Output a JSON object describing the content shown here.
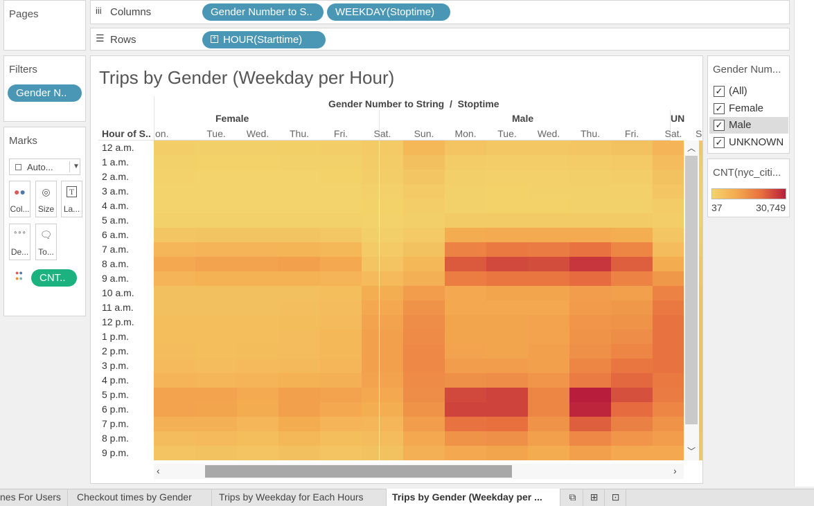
{
  "shelves": {
    "pages_title": "Pages",
    "columns_label": "Columns",
    "rows_label": "Rows",
    "columns_pills": [
      "Gender Number to S..",
      "WEEKDAY(Stoptime)"
    ],
    "rows_pills": [
      "HOUR(Starttime)"
    ]
  },
  "filters": {
    "title": "Filters",
    "pill": "Gender N.."
  },
  "marks": {
    "title": "Marks",
    "type": "Auto...",
    "buttons": [
      "Col...",
      "Size",
      "La...",
      "De...",
      "To..."
    ],
    "cnt_pill": "CNT.."
  },
  "chart": {
    "title": "Trips by Gender (Weekday per Hour)",
    "header": "Gender Number to String  /  Stoptime",
    "row_axis_title": "Hour of S..",
    "groups": [
      "Female",
      "Male",
      "UN"
    ],
    "female_days": [
      "on.",
      "Tue.",
      "Wed.",
      "Thu.",
      "Fri.",
      "Sat."
    ],
    "male_days": [
      "Sun.",
      "Mon.",
      "Tue.",
      "Wed.",
      "Thu.",
      "Fri.",
      "Sat."
    ],
    "unknown_days": [
      "Su"
    ],
    "hours": [
      "12 a.m.",
      "1 a.m.",
      "2 a.m.",
      "3 a.m.",
      "4 a.m.",
      "5 a.m.",
      "6 a.m.",
      "7 a.m.",
      "8 a.m.",
      "9 a.m.",
      "10 a.m.",
      "11 a.m.",
      "12 p.m.",
      "1 p.m.",
      "2 p.m.",
      "3 p.m.",
      "4 p.m.",
      "5 p.m.",
      "6 p.m.",
      "7 p.m.",
      "8 p.m.",
      "9 p.m."
    ]
  },
  "chart_data": {
    "type": "heatmap",
    "title": "Trips by Gender (Weekday per Hour)",
    "measure": "CNT(nyc_citi...",
    "color_range": [
      37,
      30749
    ],
    "color_low": "#f3d46c",
    "color_high": "#b81e3b",
    "rows": [
      "12 a.m.",
      "1 a.m.",
      "2 a.m.",
      "3 a.m.",
      "4 a.m.",
      "5 a.m.",
      "6 a.m.",
      "7 a.m.",
      "8 a.m.",
      "9 a.m.",
      "10 a.m.",
      "11 a.m.",
      "12 p.m.",
      "1 p.m.",
      "2 p.m.",
      "3 p.m.",
      "4 p.m.",
      "5 p.m.",
      "6 p.m.",
      "7 p.m.",
      "8 p.m.",
      "9 p.m."
    ],
    "female": [
      [
        1800,
        1200,
        1200,
        1400,
        1600,
        2600
      ],
      [
        900,
        600,
        600,
        700,
        900,
        2000
      ],
      [
        500,
        400,
        400,
        400,
        600,
        1500
      ],
      [
        300,
        300,
        300,
        300,
        400,
        1000
      ],
      [
        300,
        300,
        300,
        300,
        300,
        600
      ],
      [
        700,
        800,
        800,
        800,
        700,
        500
      ],
      [
        3500,
        3800,
        3800,
        3700,
        3400,
        1200
      ],
      [
        7500,
        8000,
        8000,
        7900,
        7000,
        2500
      ],
      [
        11000,
        12000,
        12000,
        12500,
        11000,
        4000
      ],
      [
        8000,
        8500,
        8500,
        8500,
        8000,
        6500
      ],
      [
        5000,
        5000,
        5000,
        5000,
        5500,
        9500
      ],
      [
        5000,
        5000,
        5000,
        5200,
        6000,
        11000
      ],
      [
        5500,
        5500,
        5500,
        5800,
        6500,
        12000
      ],
      [
        5500,
        5500,
        5500,
        6000,
        7000,
        12500
      ],
      [
        6000,
        5500,
        5800,
        6000,
        7000,
        12500
      ],
      [
        6500,
        6000,
        6500,
        6800,
        7500,
        12500
      ],
      [
        8000,
        7500,
        8000,
        8500,
        9000,
        12000
      ],
      [
        12000,
        12000,
        10500,
        12500,
        12000,
        11000
      ],
      [
        12000,
        11500,
        10000,
        12500,
        11000,
        9500
      ],
      [
        9000,
        9000,
        7500,
        10000,
        8000,
        7500
      ],
      [
        6000,
        6500,
        5500,
        7000,
        5500,
        6000
      ],
      [
        4000,
        4500,
        4000,
        5000,
        4000,
        4500
      ]
    ],
    "male": [
      [
        7000,
        4000,
        3000,
        3000,
        3500,
        4500,
        8000
      ],
      [
        5000,
        2000,
        1500,
        1500,
        2000,
        2500,
        6000
      ],
      [
        3500,
        1200,
        1000,
        1000,
        1200,
        1500,
        4500
      ],
      [
        2500,
        800,
        600,
        700,
        800,
        1000,
        3500
      ],
      [
        1500,
        700,
        600,
        600,
        700,
        800,
        2000
      ],
      [
        1200,
        2200,
        2300,
        2300,
        2300,
        2200,
        1500
      ],
      [
        2500,
        10000,
        10500,
        10500,
        10500,
        9500,
        3500
      ],
      [
        4500,
        18000,
        20000,
        19500,
        21000,
        17500,
        6000
      ],
      [
        7000,
        24000,
        26000,
        25500,
        28000,
        23500,
        10000
      ],
      [
        9000,
        19000,
        20500,
        20500,
        22000,
        18000,
        14000
      ],
      [
        13000,
        11000,
        11500,
        11500,
        13000,
        12500,
        18000
      ],
      [
        15000,
        11000,
        11000,
        11000,
        13500,
        14000,
        20000
      ],
      [
        16000,
        11500,
        11500,
        12000,
        14500,
        15000,
        21000
      ],
      [
        16500,
        11500,
        11500,
        12000,
        15000,
        16000,
        21000
      ],
      [
        17000,
        12000,
        11500,
        12500,
        15500,
        17500,
        21000
      ],
      [
        17000,
        13000,
        13000,
        12500,
        17500,
        20500,
        21000
      ],
      [
        16500,
        15500,
        16000,
        14500,
        19500,
        22500,
        20000
      ],
      [
        16000,
        26000,
        26500,
        17500,
        30749,
        25000,
        19500
      ],
      [
        15000,
        26500,
        26500,
        17500,
        30000,
        22000,
        17500
      ],
      [
        13000,
        21000,
        21500,
        15000,
        23500,
        18500,
        15000
      ],
      [
        11000,
        15000,
        15500,
        12500,
        17000,
        14500,
        13000
      ],
      [
        9000,
        11000,
        11500,
        10000,
        12500,
        11000,
        11000
      ]
    ],
    "unknown": [
      [
        3500
      ],
      [
        2500
      ],
      [
        2000
      ],
      [
        1500
      ],
      [
        1200
      ],
      [
        1200
      ],
      [
        2000
      ],
      [
        2500
      ],
      [
        3500
      ],
      [
        4000
      ],
      [
        4500
      ],
      [
        5000
      ],
      [
        5000
      ],
      [
        5000
      ],
      [
        5000
      ],
      [
        5000
      ],
      [
        5000
      ],
      [
        5000
      ],
      [
        4800
      ],
      [
        4500
      ],
      [
        4000
      ],
      [
        3500
      ]
    ]
  },
  "gender_filter": {
    "title": "Gender Num...",
    "items": [
      {
        "label": "(All)",
        "checked": "✓"
      },
      {
        "label": "Female",
        "checked": "✓"
      },
      {
        "label": "Male",
        "checked": "✓"
      },
      {
        "label": "UNKNOWN",
        "checked": "✓"
      }
    ]
  },
  "legend": {
    "title": "CNT(nyc_citi...",
    "min": "37",
    "max": "30,749"
  },
  "tabs": [
    "nes For Users",
    "Checkout times by Gender",
    "Trips by Weekday for Each Hours",
    "Trips by Gender (Weekday per ..."
  ],
  "icons": [
    "new-worksheet-icon",
    "new-dashboard-icon",
    "new-story-icon"
  ]
}
